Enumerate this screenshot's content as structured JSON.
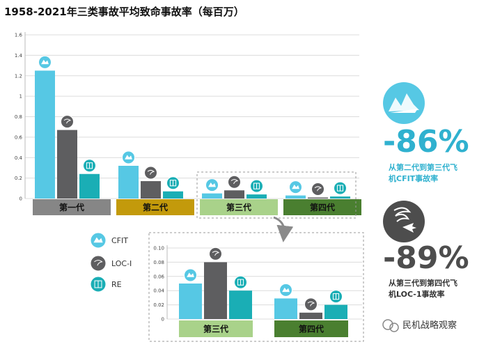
{
  "title": "1958-2021年三类事故平均致命事故率（每百万）",
  "legend": [
    {
      "key": "cfit",
      "label": "CFIT",
      "color": "#56c8e4"
    },
    {
      "key": "loc",
      "label": "LOC-I",
      "color": "#5e5e60"
    },
    {
      "key": "re",
      "label": "RE",
      "color": "#1aaeb5"
    }
  ],
  "category_colors": {
    "第一代": "#868686",
    "第二代": "#c39a0b",
    "第三代": "#a9d28a",
    "第四代": "#4a7f30"
  },
  "stats": [
    {
      "value": "-86%",
      "text": "从第二代到第三代飞机CFIT事故率",
      "color": "#2fb1cf"
    },
    {
      "value": "-89%",
      "text": "从第三代到第四代飞机LOC-1事故率",
      "color": "#4d4d4d"
    }
  ],
  "watermark": "民机战略观察",
  "chart_data": [
    {
      "type": "bar",
      "categories": [
        "第一代",
        "第二代",
        "第三代",
        "第四代"
      ],
      "series": [
        {
          "name": "CFIT",
          "values": [
            1.25,
            0.32,
            0.05,
            0.03
          ]
        },
        {
          "name": "LOC-I",
          "values": [
            0.67,
            0.17,
            0.08,
            0.01
          ]
        },
        {
          "name": "RE",
          "values": [
            0.24,
            0.07,
            0.04,
            0.02
          ]
        }
      ],
      "ylim": [
        0,
        1.6
      ],
      "yticks": [
        "1.6",
        "1.4",
        "1.2",
        "1",
        "0.8",
        "0.6",
        "0.4",
        "0.2",
        "0"
      ],
      "grid": true
    },
    {
      "type": "bar",
      "categories": [
        "第三代",
        "第四代"
      ],
      "series": [
        {
          "name": "CFIT",
          "values": [
            0.05,
            0.029
          ]
        },
        {
          "name": "LOC-I",
          "values": [
            0.08,
            0.009
          ]
        },
        {
          "name": "RE",
          "values": [
            0.04,
            0.02
          ]
        }
      ],
      "ylim": [
        0,
        0.1
      ],
      "yticks": [
        "0.10",
        "0.08",
        "0.06",
        "0.04",
        "0.02",
        "0"
      ],
      "grid": true
    }
  ]
}
